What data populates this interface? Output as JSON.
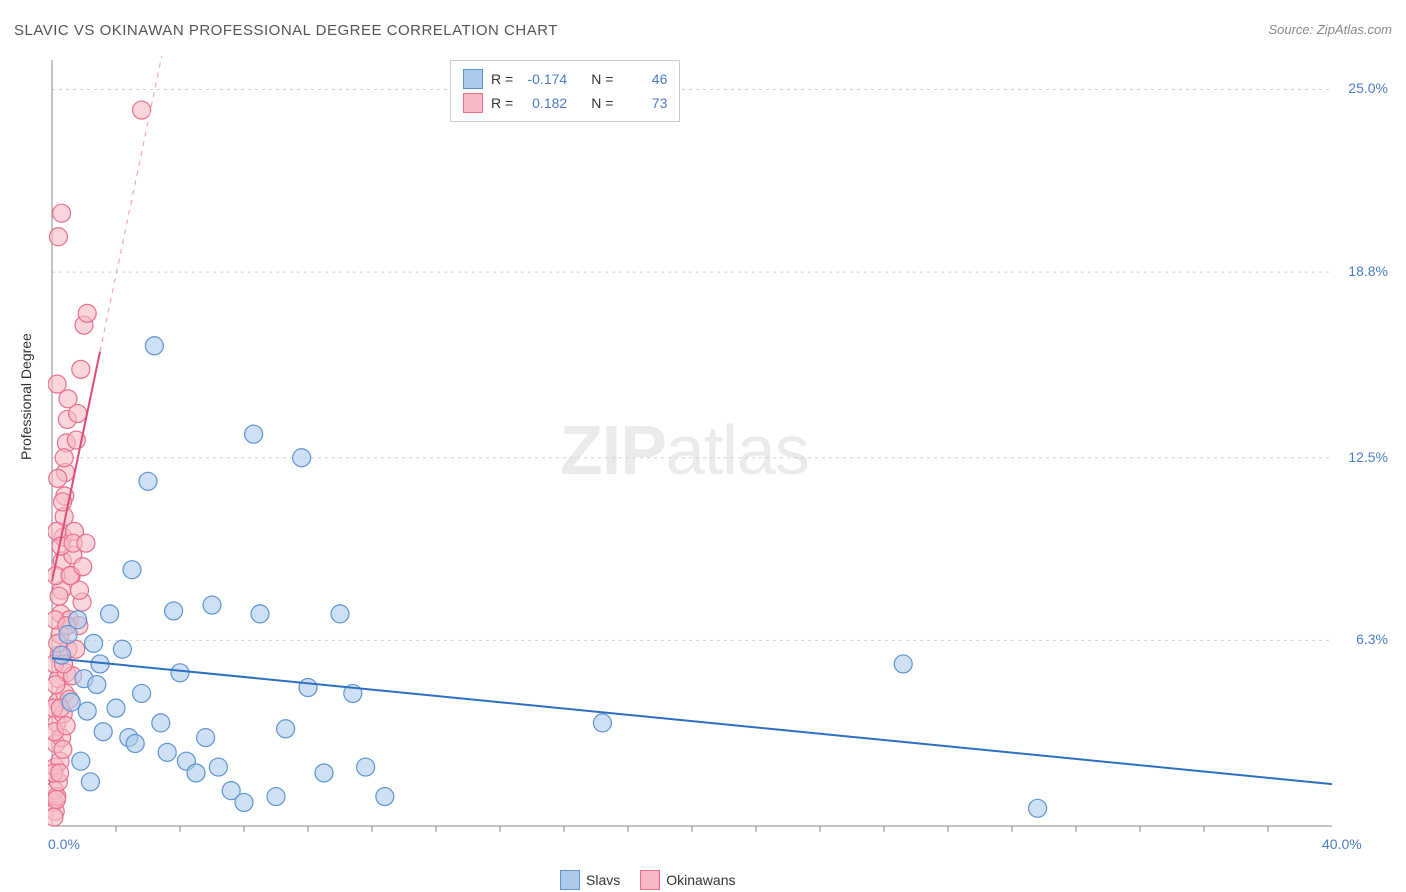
{
  "title": "SLAVIC VS OKINAWAN PROFESSIONAL DEGREE CORRELATION CHART",
  "source": "Source: ZipAtlas.com",
  "ylabel": "Professional Degree",
  "watermark_bold": "ZIP",
  "watermark_rest": "atlas",
  "chart": {
    "type": "scatter",
    "xlim": [
      0,
      40
    ],
    "ylim": [
      0,
      26
    ],
    "x_ticks": [
      0
    ],
    "x_tick_labels": [
      "0.0%"
    ],
    "x_max_label": "40.0%",
    "x_minor_ticks": [
      2,
      4,
      6,
      8,
      10,
      12,
      14,
      16,
      18,
      20,
      22,
      24,
      26,
      28,
      30,
      32,
      34,
      36,
      38
    ],
    "y_gridlines": [
      6.3,
      12.5,
      18.8,
      25.0
    ],
    "y_grid_labels": [
      "6.3%",
      "12.5%",
      "18.8%",
      "25.0%"
    ],
    "grid_color": "#d0d0d0",
    "axis_color": "#888888",
    "background_color": "#ffffff",
    "series": {
      "slavs": {
        "color_fill": "#aecbeb",
        "color_stroke": "#5f93d1",
        "marker_radius": 9,
        "fill_opacity": 0.6,
        "trend": {
          "slope": -0.107,
          "intercept": 5.7,
          "color": "#2e6fc1",
          "width": 2,
          "dash_extend": false
        },
        "points": [
          [
            0.3,
            5.8
          ],
          [
            0.5,
            6.5
          ],
          [
            0.6,
            4.2
          ],
          [
            0.8,
            7.0
          ],
          [
            1.0,
            5.0
          ],
          [
            1.1,
            3.9
          ],
          [
            1.3,
            6.2
          ],
          [
            1.4,
            4.8
          ],
          [
            1.5,
            5.5
          ],
          [
            1.6,
            3.2
          ],
          [
            1.8,
            7.2
          ],
          [
            2.0,
            4.0
          ],
          [
            2.2,
            6.0
          ],
          [
            2.4,
            3.0
          ],
          [
            2.5,
            8.7
          ],
          [
            2.6,
            2.8
          ],
          [
            2.8,
            4.5
          ],
          [
            3.0,
            11.7
          ],
          [
            3.2,
            16.3
          ],
          [
            3.4,
            3.5
          ],
          [
            3.6,
            2.5
          ],
          [
            3.8,
            7.3
          ],
          [
            4.0,
            5.2
          ],
          [
            4.2,
            2.2
          ],
          [
            4.5,
            1.8
          ],
          [
            4.8,
            3.0
          ],
          [
            5.0,
            7.5
          ],
          [
            5.2,
            2.0
          ],
          [
            5.6,
            1.2
          ],
          [
            6.0,
            0.8
          ],
          [
            6.3,
            13.3
          ],
          [
            6.5,
            7.2
          ],
          [
            7.0,
            1.0
          ],
          [
            7.3,
            3.3
          ],
          [
            7.8,
            12.5
          ],
          [
            8.0,
            4.7
          ],
          [
            8.5,
            1.8
          ],
          [
            9.0,
            7.2
          ],
          [
            9.4,
            4.5
          ],
          [
            9.8,
            2.0
          ],
          [
            10.4,
            1.0
          ],
          [
            17.2,
            3.5
          ],
          [
            26.6,
            5.5
          ],
          [
            30.8,
            0.6
          ],
          [
            0.9,
            2.2
          ],
          [
            1.2,
            1.5
          ]
        ]
      },
      "okinawans": {
        "color_fill": "#f6b9c4",
        "color_stroke": "#e86f8a",
        "marker_radius": 9,
        "fill_opacity": 0.6,
        "trend": {
          "slope": 5.2,
          "intercept": 8.3,
          "color": "#e04c75",
          "width": 2,
          "dash_extend": true,
          "dash_color": "#f2a8b8"
        },
        "points": [
          [
            0.05,
            0.8
          ],
          [
            0.08,
            1.2
          ],
          [
            0.1,
            2.0
          ],
          [
            0.12,
            2.8
          ],
          [
            0.15,
            3.5
          ],
          [
            0.18,
            4.2
          ],
          [
            0.2,
            5.0
          ],
          [
            0.22,
            5.8
          ],
          [
            0.25,
            6.5
          ],
          [
            0.28,
            7.2
          ],
          [
            0.3,
            8.0
          ],
          [
            0.32,
            9.0
          ],
          [
            0.35,
            9.8
          ],
          [
            0.38,
            10.5
          ],
          [
            0.4,
            11.2
          ],
          [
            0.42,
            12.0
          ],
          [
            0.45,
            13.0
          ],
          [
            0.48,
            13.8
          ],
          [
            0.5,
            14.5
          ],
          [
            0.1,
            0.5
          ],
          [
            0.15,
            1.0
          ],
          [
            0.2,
            1.5
          ],
          [
            0.25,
            2.2
          ],
          [
            0.3,
            3.0
          ],
          [
            0.35,
            3.8
          ],
          [
            0.4,
            4.5
          ],
          [
            0.45,
            5.2
          ],
          [
            0.5,
            6.0
          ],
          [
            0.55,
            7.0
          ],
          [
            0.6,
            8.5
          ],
          [
            0.65,
            9.2
          ],
          [
            0.7,
            10.0
          ],
          [
            0.8,
            14.0
          ],
          [
            0.9,
            15.5
          ],
          [
            1.0,
            17.0
          ],
          [
            1.1,
            17.4
          ],
          [
            0.2,
            20.0
          ],
          [
            0.3,
            20.8
          ],
          [
            0.05,
            4.0
          ],
          [
            0.08,
            5.5
          ],
          [
            0.1,
            7.0
          ],
          [
            0.12,
            8.5
          ],
          [
            0.15,
            10.0
          ],
          [
            2.8,
            24.3
          ],
          [
            0.05,
            1.8
          ],
          [
            0.08,
            3.2
          ],
          [
            0.12,
            4.8
          ],
          [
            0.18,
            6.2
          ],
          [
            0.22,
            7.8
          ],
          [
            0.28,
            9.5
          ],
          [
            0.33,
            11.0
          ],
          [
            0.38,
            12.5
          ],
          [
            0.06,
            0.3
          ],
          [
            0.14,
            0.9
          ],
          [
            0.24,
            1.8
          ],
          [
            0.34,
            2.6
          ],
          [
            0.44,
            3.4
          ],
          [
            0.54,
            4.3
          ],
          [
            0.64,
            5.1
          ],
          [
            0.74,
            6.0
          ],
          [
            0.84,
            6.8
          ],
          [
            0.94,
            7.6
          ],
          [
            0.16,
            15.0
          ],
          [
            0.18,
            11.8
          ],
          [
            0.26,
            4.0
          ],
          [
            0.36,
            5.5
          ],
          [
            0.46,
            6.8
          ],
          [
            0.56,
            8.5
          ],
          [
            0.66,
            9.6
          ],
          [
            0.76,
            13.1
          ],
          [
            0.86,
            8.0
          ],
          [
            0.96,
            8.8
          ],
          [
            1.06,
            9.6
          ]
        ]
      }
    }
  },
  "stats": [
    {
      "swatch_fill": "#aecbeb",
      "swatch_stroke": "#5f93d1",
      "r_label": "R =",
      "r": "-0.174",
      "n_label": "N =",
      "n": "46"
    },
    {
      "swatch_fill": "#f6b9c4",
      "swatch_stroke": "#e86f8a",
      "r_label": "R =",
      "r": "0.182",
      "n_label": "N =",
      "n": "73"
    }
  ],
  "legend": [
    {
      "swatch_fill": "#aecbeb",
      "swatch_stroke": "#5f93d1",
      "label": "Slavs"
    },
    {
      "swatch_fill": "#f6b9c4",
      "swatch_stroke": "#e86f8a",
      "label": "Okinawans"
    }
  ]
}
